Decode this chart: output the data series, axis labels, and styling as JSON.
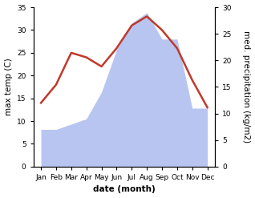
{
  "months": [
    "Jan",
    "Feb",
    "Mar",
    "Apr",
    "May",
    "Jun",
    "Jul",
    "Aug",
    "Sep",
    "Oct",
    "Nov",
    "Dec"
  ],
  "temp": [
    14.0,
    18.0,
    25.0,
    24.0,
    22.0,
    26.0,
    31.0,
    33.0,
    30.0,
    26.0,
    19.0,
    13.0
  ],
  "precip": [
    7.0,
    7.0,
    8.0,
    9.0,
    14.0,
    22.0,
    27.0,
    29.0,
    24.0,
    24.0,
    11.0,
    11.0
  ],
  "temp_color": "#c0392b",
  "precip_fill_color": "#b8c5f0",
  "ylabel_left": "max temp (C)",
  "ylabel_right": "med. precipitation (kg/m2)",
  "xlabel": "date (month)",
  "ylim_left": [
    0,
    35
  ],
  "ylim_right": [
    0,
    30
  ],
  "yticks_left": [
    0,
    5,
    10,
    15,
    20,
    25,
    30,
    35
  ],
  "yticks_right": [
    0,
    5,
    10,
    15,
    20,
    25,
    30
  ],
  "bg_color": "#ffffff",
  "temp_linewidth": 1.8,
  "label_fontsize": 7.5,
  "tick_fontsize": 6.5
}
